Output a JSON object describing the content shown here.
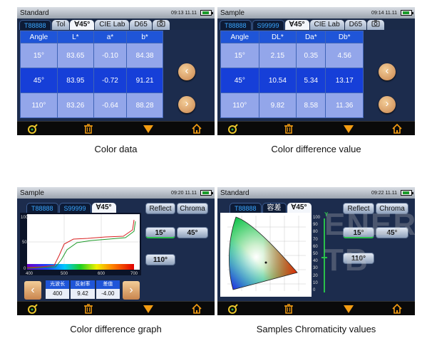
{
  "colors": {
    "header_blue": "#1f55d8",
    "row_light": "#93a6ea",
    "row_dark": "#163fd8",
    "accent_green": "#29c04a",
    "accent_orange": "#f39c12"
  },
  "screens": [
    {
      "title": "Standard",
      "time": "09:13 11.11",
      "tabs": [
        "T88888",
        "Tol",
        "∀45°",
        "CIE Lab",
        "D65"
      ],
      "camera_icon": "camera-icon",
      "table": {
        "headers": [
          "Angle",
          "L*",
          "a*",
          "b*"
        ],
        "rows": [
          [
            "15°",
            "83.65",
            "-0.10",
            "84.38"
          ],
          [
            "45°",
            "83.95",
            "-0.72",
            "91.21"
          ],
          [
            "110°",
            "83.26",
            "-0.64",
            "88.28"
          ]
        ]
      },
      "caption": "Color data"
    },
    {
      "title": "Sample",
      "time": "09:14 11.11",
      "tabs": [
        "T88888",
        "S99999",
        "∀45°",
        "CIE Lab",
        "D65"
      ],
      "camera_icon": "camera-icon",
      "table": {
        "headers": [
          "Angle",
          "DL*",
          "Da*",
          "Db*"
        ],
        "rows": [
          [
            "15°",
            "2.15",
            "0.35",
            "4.56"
          ],
          [
            "45°",
            "10.54",
            "5.34",
            "13.17"
          ],
          [
            "110°",
            "9.82",
            "8.58",
            "11.36"
          ]
        ]
      },
      "caption": "Color difference value"
    },
    {
      "title": "Sample",
      "time": "09:20 11.11",
      "tabs": [
        "T88888",
        "S99999",
        "∀45°"
      ],
      "buttons": {
        "reflect": "Reflect",
        "chroma": "Chroma",
        "a15": "15°",
        "a45": "45°",
        "a110": "110°"
      },
      "graph_axis": {
        "y": [
          "100",
          "50",
          "0"
        ],
        "x": [
          "400",
          "500",
          "600",
          "700"
        ]
      },
      "readout": {
        "labels": [
          "光波长",
          "反射率",
          "差值"
        ],
        "values": [
          "400",
          "9.42",
          "-4.00"
        ]
      },
      "caption": "Color difference graph"
    },
    {
      "title": "Standard",
      "time": "09:22 11.11",
      "tabs": [
        "T88888",
        "容差",
        "∀45°"
      ],
      "buttons": {
        "reflect": "Reflect",
        "chroma": "Chroma",
        "a15": "15°",
        "a45": "45°",
        "a110": "110°"
      },
      "y_axis_label": "Y",
      "y_ticks": [
        "100",
        "90",
        "80",
        "70",
        "60",
        "50",
        "40",
        "30",
        "20",
        "10",
        "0"
      ],
      "caption": "Samples Chromaticity values"
    }
  ],
  "watermark": "ENERGY TB"
}
